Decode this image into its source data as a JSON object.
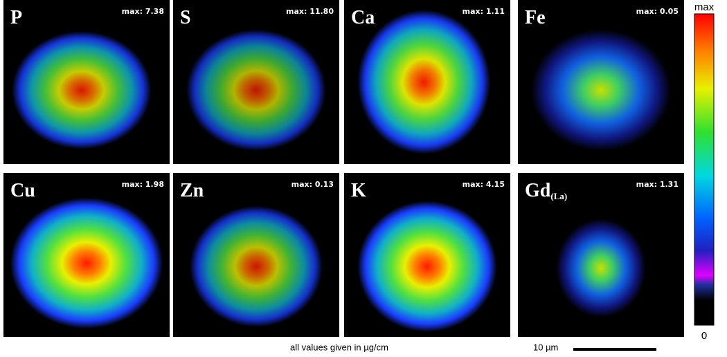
{
  "panels": [
    {
      "element": "P",
      "max_label": "max: 7.38"
    },
    {
      "element": "S",
      "max_label": "max: 11.80"
    },
    {
      "element": "Ca",
      "max_label": "max: 1.11"
    },
    {
      "element": "Fe",
      "max_label": "max: 0.05"
    },
    {
      "element": "Cu",
      "max_label": "max: 1.98"
    },
    {
      "element": "Zn",
      "max_label": "max: 0.13"
    },
    {
      "element": "K",
      "max_label": "max: 4.15"
    },
    {
      "element": "Gd",
      "subscript": "(La)",
      "max_label": "max: 1.31"
    }
  ],
  "colorbar": {
    "top_label": "max",
    "bottom_label": "0"
  },
  "footer_note": "all values given in µg/cm",
  "scale_bar_label": "10 µm"
}
